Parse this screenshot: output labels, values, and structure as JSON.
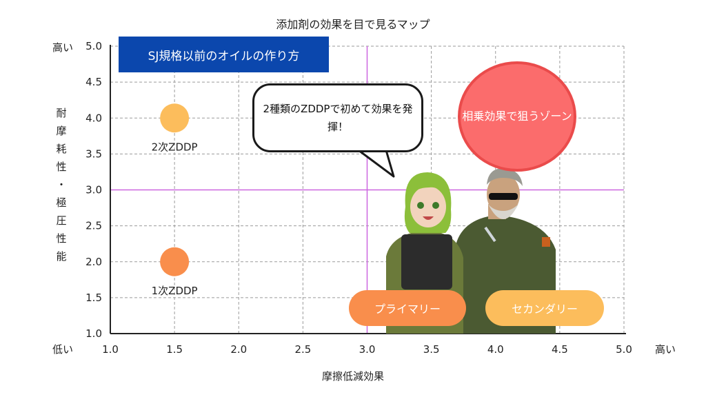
{
  "chart_data": {
    "type": "scatter",
    "title": "添加剤の効果を目で見るマップ",
    "xlabel": "摩擦低減効果",
    "ylabel": "耐摩耗性・極圧性能",
    "xlim": [
      1.0,
      5.0
    ],
    "ylim": [
      1.0,
      5.0
    ],
    "x_ticks": [
      "1.0",
      "1.5",
      "2.0",
      "2.5",
      "3.0",
      "3.5",
      "4.0",
      "4.5",
      "5.0"
    ],
    "y_ticks": [
      "1.0",
      "1.5",
      "2.0",
      "2.5",
      "3.0",
      "3.5",
      "4.0",
      "4.5",
      "5.0"
    ],
    "x_low_label": "",
    "x_high_label": "高い",
    "y_low_label": "低い",
    "y_high_label": "高い",
    "grid": true,
    "divider_x": 3.0,
    "divider_y": 3.0,
    "points": [
      {
        "label": "2次ZDDP",
        "x": 1.5,
        "y": 4.0,
        "color": "#fcbd5c"
      },
      {
        "label": "1次ZDDP",
        "x": 1.5,
        "y": 2.0,
        "color": "#f98e4c"
      }
    ],
    "annotations": {
      "banner": "SJ規格以前のオイルの作り方",
      "bubble": "2種類のZDDPで初めて効果を発揮！",
      "target_zone": "相乗効果で狙うゾーン",
      "primary": "プライマリー",
      "secondary": "セカンダリー"
    },
    "colors": {
      "axis": "#222222",
      "grid": "#9a9a9a",
      "divider": "#cc66e0",
      "banner": "#0b47ad",
      "target_zone": "#fb6c6c",
      "primary": "#f98e4c",
      "secondary": "#fcbd5c"
    }
  }
}
